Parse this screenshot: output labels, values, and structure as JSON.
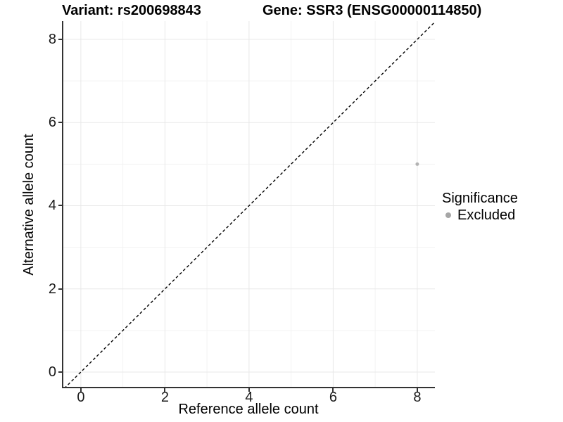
{
  "header": {
    "variant_title": "Variant: rs200698843",
    "gene_title": "Gene: SSR3 (ENSG00000114850)"
  },
  "colors": {
    "point": "#b3b3b3",
    "legend_key": "#a6a6a6",
    "grid_major": "#e8e8e8",
    "grid_minor": "#f3f3f3",
    "axis_line": "#333333",
    "reference_line": "#000000",
    "text": "#000000"
  },
  "chart_data": {
    "type": "scatter",
    "title": "Variant: rs200698843   Gene: SSR3 (ENSG00000114850)",
    "xlabel": "Reference allele count",
    "ylabel": "Alternative allele count",
    "xlim": [
      -0.45,
      8.42
    ],
    "ylim": [
      -0.39,
      8.44
    ],
    "x_ticks": [
      0,
      2,
      4,
      6,
      8
    ],
    "y_ticks": [
      0,
      2,
      4,
      6,
      8
    ],
    "x_minor_ticks": [
      1,
      3,
      5,
      7
    ],
    "y_minor_ticks": [
      1,
      3,
      5,
      7
    ],
    "grid": true,
    "legend": {
      "title": "Significance",
      "position": "right",
      "items": [
        {
          "label": "Excluded",
          "color": "#a6a6a6"
        }
      ]
    },
    "series": [
      {
        "name": "Excluded",
        "color": "#b3b3b3",
        "point_radius": 2.5,
        "points": [
          [
            8,
            5
          ]
        ]
      }
    ],
    "reference_line": {
      "slope": 1,
      "intercept": 0,
      "style": "dashed",
      "color": "#000000"
    }
  }
}
